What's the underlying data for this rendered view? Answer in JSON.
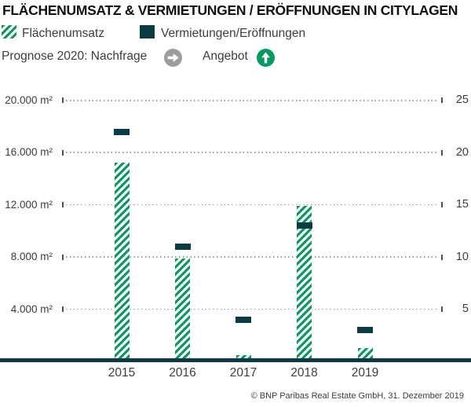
{
  "title": "FLÄCHENUMSATZ & VERMIETUNGEN / ERÖFFNUNGEN IN CITYLAGEN",
  "legend": {
    "flaechenumsatz_label": "Flächenumsatz",
    "vermietungen_label": "Vermietungen/Eröffnungen"
  },
  "prognose": {
    "label": "Prognose 2020: Nachfrage",
    "nachfrage_icon": "arrow-right-circle",
    "angebot_label": "Angebot",
    "angebot_icon": "arrow-up-circle"
  },
  "footer": "© BNP Paribas Real Estate GmbH, 31. Dezember 2019",
  "colors": {
    "green": "#0a9a60",
    "petrol": "#0d3b44",
    "gray_circle": "#9d9d9c",
    "text": "#3d3d3c",
    "title_text": "#111111",
    "grid_dots": "#9c9c9c"
  },
  "chart_data": {
    "type": "bar",
    "title": "FLÄCHENUMSATZ & VERMIETUNGEN / ERÖFFNUNGEN IN CITYLAGEN",
    "categories": [
      "2015",
      "2016",
      "2017",
      "2018",
      "2019"
    ],
    "series": [
      {
        "name": "Flächenumsatz",
        "axis": "left",
        "unit": "m²",
        "style": "hatched-green-bar",
        "values": [
          15200,
          7900,
          500,
          11900,
          1000
        ]
      },
      {
        "name": "Vermietungen/Eröffnungen",
        "axis": "right",
        "style": "petrol-dash-marker",
        "values": [
          22,
          11,
          4,
          13,
          3
        ]
      }
    ],
    "left_axis": {
      "tick_values": [
        20000,
        16000,
        12000,
        8000,
        4000
      ],
      "tick_labels": [
        "20.000 m²",
        "16.000 m²",
        "12.000 m²",
        "8.000 m²",
        "4.000 m²"
      ],
      "range": [
        0,
        24000
      ]
    },
    "right_axis": {
      "tick_values": [
        25,
        20,
        15,
        10,
        5
      ],
      "tick_labels": [
        "25",
        "20",
        "15",
        "10",
        "5"
      ],
      "range": [
        0,
        30
      ]
    },
    "grid": "dotted-horizontal",
    "legend_position": "top-left"
  }
}
